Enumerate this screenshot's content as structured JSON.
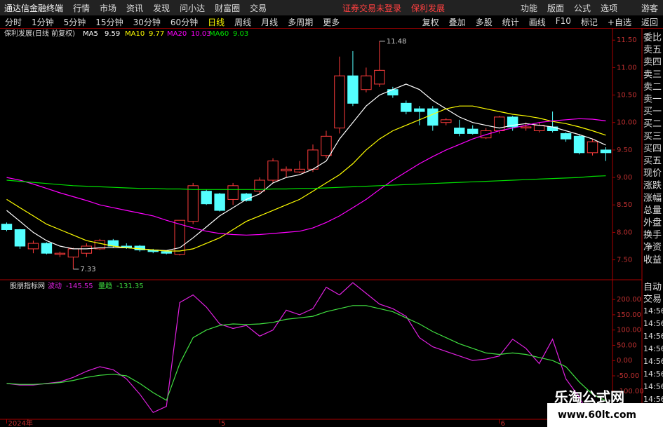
{
  "menu": {
    "app": "通达信金融终端",
    "left": [
      "行情",
      "市场",
      "资讯",
      "发现",
      "问小达",
      "财富圈",
      "交易"
    ],
    "status": "证券交易未登录",
    "stock": "保利发展",
    "right": [
      "功能",
      "版面",
      "公式",
      "选项"
    ],
    "user": "游客"
  },
  "periods": [
    "分时",
    "1分钟",
    "5分钟",
    "15分钟",
    "30分钟",
    "60分钟",
    "日线",
    "周线",
    "月线",
    "多周期",
    "更多"
  ],
  "active_period": "日线",
  "tools": [
    "复权",
    "叠加",
    "多股",
    "统计",
    "画线",
    "F10",
    "标记",
    "+自选",
    "返回"
  ],
  "side": {
    "labels": [
      "委比",
      "卖五",
      "卖四",
      "卖三",
      "卖二",
      "卖一",
      "买一",
      "买二",
      "买三",
      "买四",
      "买五",
      "现价",
      "涨跌",
      "涨幅",
      "总量",
      "外盘",
      "换手",
      "净资",
      "收益"
    ],
    "buttons": [
      "自动",
      "交易"
    ],
    "times": [
      "14:56",
      "14:56",
      "14:56",
      "14:56",
      "14:56",
      "14:56",
      "14:56",
      "14:56"
    ]
  },
  "watermark": {
    "name": "乐淘公式网",
    "url": "www.60lt.com"
  },
  "chart_data": [
    {
      "type": "candlestick",
      "title": "保利发展(日线 前复权)",
      "categories": [
        "2024年",
        null,
        null,
        null,
        null,
        null,
        null,
        null,
        null,
        null,
        null,
        null,
        null,
        null,
        null,
        null,
        "5",
        null,
        null,
        null,
        null,
        null,
        null,
        null,
        null,
        null,
        null,
        null,
        null,
        null,
        null,
        null,
        null,
        null,
        null,
        null,
        null,
        "6",
        null,
        null,
        null,
        null,
        null,
        null,
        null,
        null
      ],
      "open": [
        8.15,
        8.05,
        7.7,
        7.8,
        7.6,
        7.55,
        7.62,
        7.7,
        7.85,
        7.75,
        7.75,
        7.68,
        7.65,
        7.6,
        8.2,
        8.75,
        8.7,
        8.6,
        8.7,
        8.75,
        8.95,
        9.12,
        9.1,
        9.15,
        9.4,
        9.9,
        10.85,
        10.6,
        10.7,
        10.6,
        10.35,
        10.25,
        10.25,
        10.0,
        9.9,
        9.88,
        9.72,
        9.85,
        10.1,
        9.9,
        9.85,
        9.92,
        9.8,
        9.75,
        9.45,
        9.5
      ],
      "close": [
        8.05,
        7.75,
        7.8,
        7.62,
        7.62,
        7.7,
        7.75,
        7.85,
        7.75,
        7.72,
        7.68,
        7.65,
        7.62,
        8.22,
        8.85,
        8.52,
        8.4,
        8.85,
        8.58,
        8.95,
        9.3,
        9.15,
        9.15,
        9.5,
        9.75,
        10.85,
        10.35,
        10.85,
        10.95,
        10.5,
        10.2,
        10.2,
        9.95,
        10.05,
        9.8,
        9.8,
        9.85,
        10.1,
        9.92,
        9.92,
        9.95,
        9.85,
        9.7,
        9.45,
        9.65,
        9.45
      ],
      "high": [
        8.18,
        8.06,
        7.85,
        7.82,
        7.65,
        7.72,
        7.8,
        7.88,
        7.88,
        7.8,
        7.77,
        7.7,
        7.66,
        8.22,
        8.9,
        8.78,
        8.72,
        8.9,
        8.72,
        9.0,
        9.35,
        9.2,
        9.3,
        9.6,
        9.85,
        11.2,
        11.3,
        11.0,
        11.48,
        10.65,
        10.4,
        10.3,
        10.3,
        10.08,
        10.05,
        9.95,
        9.9,
        10.12,
        10.12,
        10.0,
        10.0,
        10.2,
        9.82,
        9.78,
        9.7,
        9.55
      ],
      "low": [
        8.02,
        7.7,
        7.62,
        7.6,
        7.55,
        7.33,
        7.55,
        7.68,
        7.72,
        7.7,
        7.65,
        7.62,
        7.6,
        7.58,
        8.15,
        8.5,
        8.38,
        8.5,
        8.56,
        8.7,
        8.9,
        9.0,
        9.08,
        9.1,
        9.35,
        9.8,
        10.3,
        10.55,
        10.65,
        10.45,
        10.15,
        9.95,
        9.85,
        9.95,
        9.75,
        9.78,
        9.7,
        9.8,
        9.85,
        9.85,
        9.82,
        9.82,
        9.65,
        9.42,
        9.4,
        9.3
      ],
      "up_color": "#ff3c3c",
      "down_color": "#54ffff",
      "annotations": [
        {
          "value": 11.48,
          "label": "11.48"
        },
        {
          "value": 7.33,
          "label": "7.33"
        }
      ],
      "series": [
        {
          "name": "MA5",
          "color": "#ffffff",
          "values": [
            8.4,
            8.2,
            8.0,
            7.85,
            7.75,
            7.7,
            7.7,
            7.72,
            7.72,
            7.72,
            7.7,
            7.68,
            7.67,
            7.72,
            7.9,
            8.1,
            8.3,
            8.45,
            8.6,
            8.7,
            8.9,
            9.0,
            9.05,
            9.15,
            9.3,
            9.7,
            10.0,
            10.3,
            10.5,
            10.6,
            10.7,
            10.6,
            10.4,
            10.25,
            10.1,
            10.0,
            9.95,
            9.9,
            9.95,
            9.98,
            9.95,
            9.92,
            9.85,
            9.78,
            9.7,
            9.59
          ]
        },
        {
          "name": "MA10",
          "color": "#ffff00",
          "values": [
            8.6,
            8.45,
            8.3,
            8.15,
            8.05,
            7.95,
            7.85,
            7.8,
            7.75,
            7.72,
            7.7,
            7.68,
            7.66,
            7.66,
            7.7,
            7.8,
            7.9,
            8.05,
            8.2,
            8.3,
            8.4,
            8.5,
            8.6,
            8.75,
            8.9,
            9.05,
            9.25,
            9.5,
            9.7,
            9.85,
            9.95,
            10.05,
            10.15,
            10.25,
            10.3,
            10.3,
            10.25,
            10.2,
            10.15,
            10.12,
            10.08,
            10.02,
            9.98,
            9.92,
            9.85,
            9.77
          ]
        },
        {
          "name": "MA20",
          "color": "#ff00ff",
          "values": [
            9.0,
            8.95,
            8.88,
            8.8,
            8.72,
            8.65,
            8.58,
            8.5,
            8.45,
            8.4,
            8.35,
            8.3,
            8.22,
            8.15,
            8.08,
            8.02,
            7.98,
            7.96,
            7.95,
            7.96,
            7.98,
            8.0,
            8.02,
            8.08,
            8.18,
            8.3,
            8.45,
            8.6,
            8.78,
            8.95,
            9.1,
            9.25,
            9.38,
            9.5,
            9.6,
            9.7,
            9.78,
            9.85,
            9.9,
            9.95,
            10.0,
            10.03,
            10.05,
            10.07,
            10.06,
            10.03
          ]
        },
        {
          "name": "MA60",
          "color": "#00e000",
          "values": [
            8.95,
            8.93,
            8.91,
            8.89,
            8.87,
            8.85,
            8.84,
            8.83,
            8.82,
            8.81,
            8.8,
            8.8,
            8.79,
            8.79,
            8.78,
            8.78,
            8.78,
            8.78,
            8.78,
            8.78,
            8.79,
            8.79,
            8.8,
            8.8,
            8.81,
            8.82,
            8.83,
            8.84,
            8.85,
            8.86,
            8.87,
            8.88,
            8.89,
            8.9,
            8.91,
            8.92,
            8.93,
            8.94,
            8.95,
            8.96,
            8.97,
            8.98,
            8.99,
            9.0,
            9.02,
            9.03
          ]
        }
      ],
      "ylim": [
        7.15,
        11.72
      ],
      "yticks": [
        {
          "value": 7.5,
          "label": "7.50"
        },
        {
          "value": 8,
          "label": "8.00"
        },
        {
          "value": 8.5,
          "label": "8.50"
        },
        {
          "value": 9,
          "label": "9.00"
        },
        {
          "value": 9.5,
          "label": "9.50"
        },
        {
          "value": 10,
          "label": "10.00"
        },
        {
          "value": 10.5,
          "label": "10.50"
        },
        {
          "value": 11,
          "label": "11.00"
        },
        {
          "value": 11.5,
          "label": "11.50"
        }
      ]
    },
    {
      "type": "line",
      "title": "股朋指标网",
      "series": [
        {
          "name": "波动",
          "color": "#e020e0",
          "values": [
            -75,
            -80,
            -80,
            -75,
            -70,
            -55,
            -35,
            -20,
            -30,
            -60,
            -110,
            -170,
            -150,
            190,
            215,
            175,
            120,
            105,
            115,
            80,
            100,
            165,
            150,
            170,
            240,
            215,
            255,
            220,
            185,
            170,
            145,
            75,
            45,
            30,
            15,
            0,
            5,
            15,
            70,
            40,
            -10,
            70,
            -60,
            -120,
            -200,
            -145.55
          ]
        },
        {
          "name": "量趋",
          "color": "#40e040",
          "values": [
            -75,
            -78,
            -78,
            -76,
            -72,
            -65,
            -55,
            -48,
            -45,
            -50,
            -75,
            -105,
            -130,
            -10,
            75,
            100,
            115,
            120,
            118,
            120,
            125,
            135,
            140,
            145,
            160,
            170,
            180,
            180,
            170,
            160,
            140,
            120,
            95,
            75,
            55,
            40,
            25,
            20,
            25,
            20,
            10,
            0,
            -20,
            -70,
            -110,
            -131.35
          ]
        }
      ],
      "ylim": [
        -190,
        260
      ],
      "yticks": [
        {
          "value": -150,
          "label": "-150.00"
        },
        {
          "value": -100,
          "label": "-100.00"
        },
        {
          "value": -50,
          "label": "-50.00"
        },
        {
          "value": 0,
          "label": "0.00"
        },
        {
          "value": 50,
          "label": "50.00"
        },
        {
          "value": 100,
          "label": "100.00"
        },
        {
          "value": 150,
          "label": "150.00"
        },
        {
          "value": 200,
          "label": "200.00"
        }
      ]
    }
  ]
}
